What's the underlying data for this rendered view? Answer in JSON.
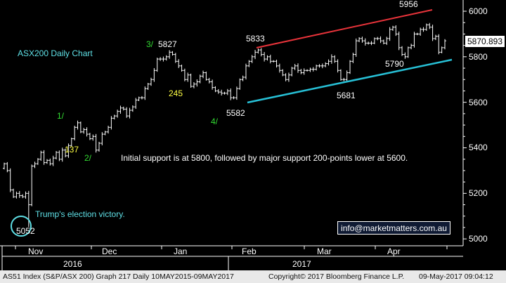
{
  "chart_data": {
    "type": "bar",
    "subtype": "ohlc-price-chart",
    "title": "ASX200 Daily Chart",
    "colors": {
      "background": "#000000",
      "bars": "#ffffff",
      "upper_channel": "#e8333a",
      "lower_channel": "#27c0d6",
      "wave_labels": "#33dd33",
      "retrace_labels": "#ffff44",
      "notes": "#5fe0e6"
    },
    "ylim": [
      4960,
      6060
    ],
    "yticks": [
      5000,
      5200,
      5400,
      5600,
      5800,
      6000
    ],
    "y_axis_side": "right",
    "grid": false,
    "month_labels": [
      "Nov",
      "Dec",
      "Jan",
      "Feb",
      "Mar",
      "Apr"
    ],
    "year_labels": [
      "2016",
      "2017"
    ],
    "last_price": "5870.893",
    "closes": [
      5330,
      5300,
      5215,
      5185,
      5200,
      5190,
      5185,
      5200,
      5150,
      5320,
      5330,
      5350,
      5380,
      5335,
      5345,
      5330,
      5355,
      5380,
      5350,
      5390,
      5365,
      5410,
      5440,
      5490,
      5510,
      5470,
      5480,
      5460,
      5440,
      5450,
      5390,
      5420,
      5460,
      5470,
      5490,
      5530,
      5540,
      5560,
      5575,
      5570,
      5540,
      5565,
      5580,
      5610,
      5620,
      5620,
      5660,
      5680,
      5700,
      5740,
      5790,
      5790,
      5790,
      5800,
      5820,
      5810,
      5780,
      5760,
      5740,
      5700,
      5720,
      5670,
      5680,
      5690,
      5715,
      5730,
      5700,
      5690,
      5665,
      5650,
      5645,
      5640,
      5640,
      5650,
      5620,
      5620,
      5660,
      5700,
      5710,
      5760,
      5780,
      5800,
      5820,
      5830,
      5810,
      5790,
      5800,
      5780,
      5780,
      5760,
      5740,
      5720,
      5700,
      5720,
      5750,
      5760,
      5740,
      5730,
      5740,
      5740,
      5745,
      5745,
      5760,
      5760,
      5760,
      5770,
      5780,
      5800,
      5780,
      5740,
      5700,
      5700,
      5730,
      5780,
      5810,
      5870,
      5880,
      5870,
      5860,
      5860,
      5860,
      5880,
      5880,
      5870,
      5860,
      5880,
      5920,
      5930,
      5900,
      5840,
      5810,
      5800,
      5840,
      5850,
      5900,
      5900,
      5920,
      5920,
      5940,
      5930,
      5880,
      5890,
      5820,
      5840,
      5870
    ],
    "annotations": [
      {
        "text": "5052",
        "role": "low"
      },
      {
        "text": "Trump's election victory.",
        "role": "note"
      },
      {
        "text": "1/",
        "role": "wave"
      },
      {
        "text": "137",
        "role": "retrace"
      },
      {
        "text": "2/",
        "role": "wave"
      },
      {
        "text": "3/",
        "role": "wave"
      },
      {
        "text": "5827",
        "role": "level"
      },
      {
        "text": "245",
        "role": "retrace"
      },
      {
        "text": "4/",
        "role": "wave"
      },
      {
        "text": "5582",
        "role": "level"
      },
      {
        "text": "5833",
        "role": "level"
      },
      {
        "text": "5681",
        "role": "level"
      },
      {
        "text": "5956",
        "role": "level"
      },
      {
        "text": "5790",
        "role": "level"
      },
      {
        "text": "Initial support is at 5800, followed by major support 200-points lower at 5600.",
        "role": "commentary"
      }
    ]
  },
  "contact": "info@marketmatters.com.au",
  "footer": {
    "left": "AS51 Index (S&P/ASX 200) Graph 217  Daily 10MAY2015-09MAY2017",
    "middle": "Copyright© 2017 Bloomberg Finance L.P.",
    "right": "09-May-2017 09:04:12"
  }
}
